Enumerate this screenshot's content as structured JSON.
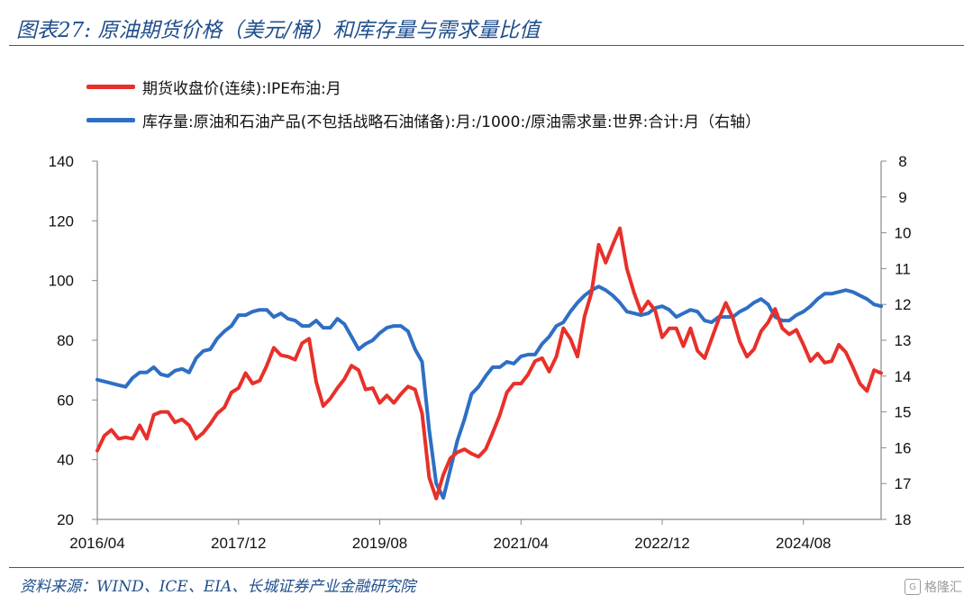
{
  "header": {
    "title": "图表27: 原油期货价格（美元/桶）和库存量与需求量比值"
  },
  "footer": {
    "source": "资料来源：WIND、ICE、EIA、长城证券产业金融研究院",
    "watermark": "格隆汇"
  },
  "chart_data": {
    "type": "line",
    "legend_placement": "top-left",
    "grid": false,
    "x_tick_labels": [
      "2016/04",
      "2017/12",
      "2019/08",
      "2021/04",
      "2022/12",
      "2024/08"
    ],
    "left_axis": {
      "ylim": [
        20,
        140
      ],
      "ticks": [
        20,
        40,
        60,
        80,
        100,
        120,
        140
      ]
    },
    "right_axis": {
      "ylim": [
        8,
        18
      ],
      "inverted": true,
      "ticks": [
        8,
        9,
        10,
        11,
        12,
        13,
        14,
        15,
        16,
        17,
        18
      ]
    },
    "series": [
      {
        "name": "期货收盘价(连续):IPE布油:月",
        "axis": "left",
        "color": "#e8302a",
        "values": [
          43,
          48,
          50,
          47,
          47.5,
          47,
          51.5,
          47,
          55,
          56,
          56,
          52.5,
          53.5,
          51.5,
          47,
          49,
          52,
          55.5,
          57.5,
          62.5,
          64,
          69,
          65.5,
          66.5,
          71.5,
          77.5,
          75,
          74.5,
          73.5,
          79,
          80.5,
          66,
          58,
          60.5,
          64,
          67,
          71.5,
          70,
          63.5,
          64,
          59,
          61.5,
          59,
          62,
          64.5,
          63.5,
          55.5,
          34,
          27,
          35,
          40.5,
          42.5,
          43.5,
          42,
          41,
          43.5,
          49,
          55,
          62.5,
          65.5,
          65.5,
          68.5,
          73,
          74,
          69.5,
          74.5,
          84,
          80.5,
          74.5,
          88,
          96,
          112,
          106,
          112,
          117.5,
          104,
          96,
          89.5,
          93,
          90,
          81,
          84,
          84,
          78,
          84,
          76.5,
          74,
          80.5,
          87,
          92.5,
          87.5,
          79.5,
          74.5,
          77,
          83,
          86,
          90.5,
          84,
          82,
          83.5,
          78.5,
          73,
          75.5,
          72.5,
          73,
          78.5,
          76,
          71,
          65.5,
          63,
          70,
          69
        ]
      },
      {
        "name": "库存量:原油和石油产品(不包括战略石油储备):月:/1000:/原油需求量:世界:合计:月（右轴）",
        "axis": "right",
        "color": "#2e6fc4",
        "values": [
          14.1,
          14.15,
          14.2,
          14.25,
          14.3,
          14.05,
          13.9,
          13.9,
          13.75,
          13.95,
          14.0,
          13.85,
          13.8,
          13.9,
          13.5,
          13.3,
          13.25,
          12.95,
          12.75,
          12.6,
          12.3,
          12.3,
          12.2,
          12.15,
          12.15,
          12.35,
          12.25,
          12.4,
          12.45,
          12.6,
          12.6,
          12.45,
          12.65,
          12.65,
          12.4,
          12.55,
          12.9,
          13.25,
          13.1,
          13.0,
          12.8,
          12.65,
          12.6,
          12.6,
          12.75,
          13.25,
          13.6,
          15.5,
          17.0,
          17.4,
          16.6,
          15.8,
          15.2,
          14.5,
          14.3,
          14.0,
          13.75,
          13.75,
          13.6,
          13.65,
          13.45,
          13.4,
          13.4,
          13.1,
          12.9,
          12.6,
          12.5,
          12.2,
          11.95,
          11.75,
          11.6,
          11.5,
          11.6,
          11.75,
          11.95,
          12.2,
          12.25,
          12.3,
          12.25,
          12.1,
          12.05,
          12.15,
          12.35,
          12.25,
          12.15,
          12.2,
          12.45,
          12.5,
          12.35,
          12.35,
          12.35,
          12.2,
          12.1,
          11.95,
          11.85,
          12.0,
          12.35,
          12.45,
          12.45,
          12.3,
          12.2,
          12.05,
          11.85,
          11.7,
          11.7,
          11.65,
          11.6,
          11.65,
          11.75,
          11.85,
          12.0,
          12.05
        ]
      }
    ]
  }
}
